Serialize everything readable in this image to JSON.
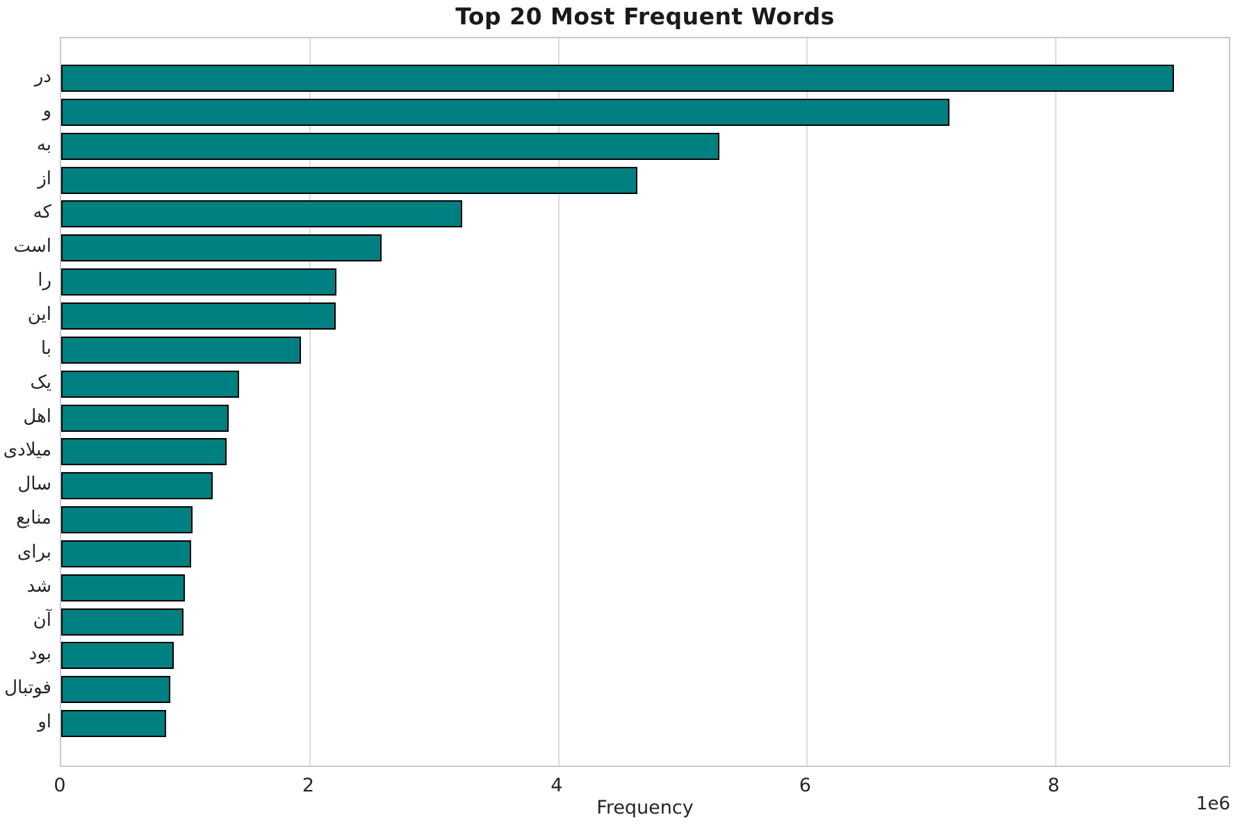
{
  "chart_data": {
    "type": "bar",
    "orientation": "horizontal",
    "title": "Top 20 Most Frequent Words",
    "xlabel": "Frequency",
    "scale_offset_label": "1e6",
    "categories": [
      "در",
      "و",
      "به",
      "از",
      "که",
      "است",
      "را",
      "این",
      "با",
      "یک",
      "اهل",
      "میلادی",
      "سال",
      "منابع",
      "برای",
      "شد",
      "آن",
      "بود",
      "فوتبال",
      "او"
    ],
    "values": [
      8960000,
      7150000,
      5300000,
      4640000,
      3230000,
      2580000,
      2215000,
      2210000,
      1930000,
      1430000,
      1350000,
      1330000,
      1220000,
      1055000,
      1045000,
      995000,
      985000,
      905000,
      880000,
      845000
    ],
    "xlim": [
      0,
      9400000
    ],
    "xticks": {
      "values": [
        0,
        2000000,
        4000000,
        6000000,
        8000000
      ],
      "labels": [
        "0",
        "2",
        "4",
        "6",
        "8"
      ]
    },
    "grid": "vertical",
    "legend": "none",
    "colors": {
      "bar_fill": "#008080",
      "bar_edge": "#000000",
      "gridline": "#dcdcdc",
      "spine": "#c9c9c9",
      "text": "#262626"
    }
  }
}
